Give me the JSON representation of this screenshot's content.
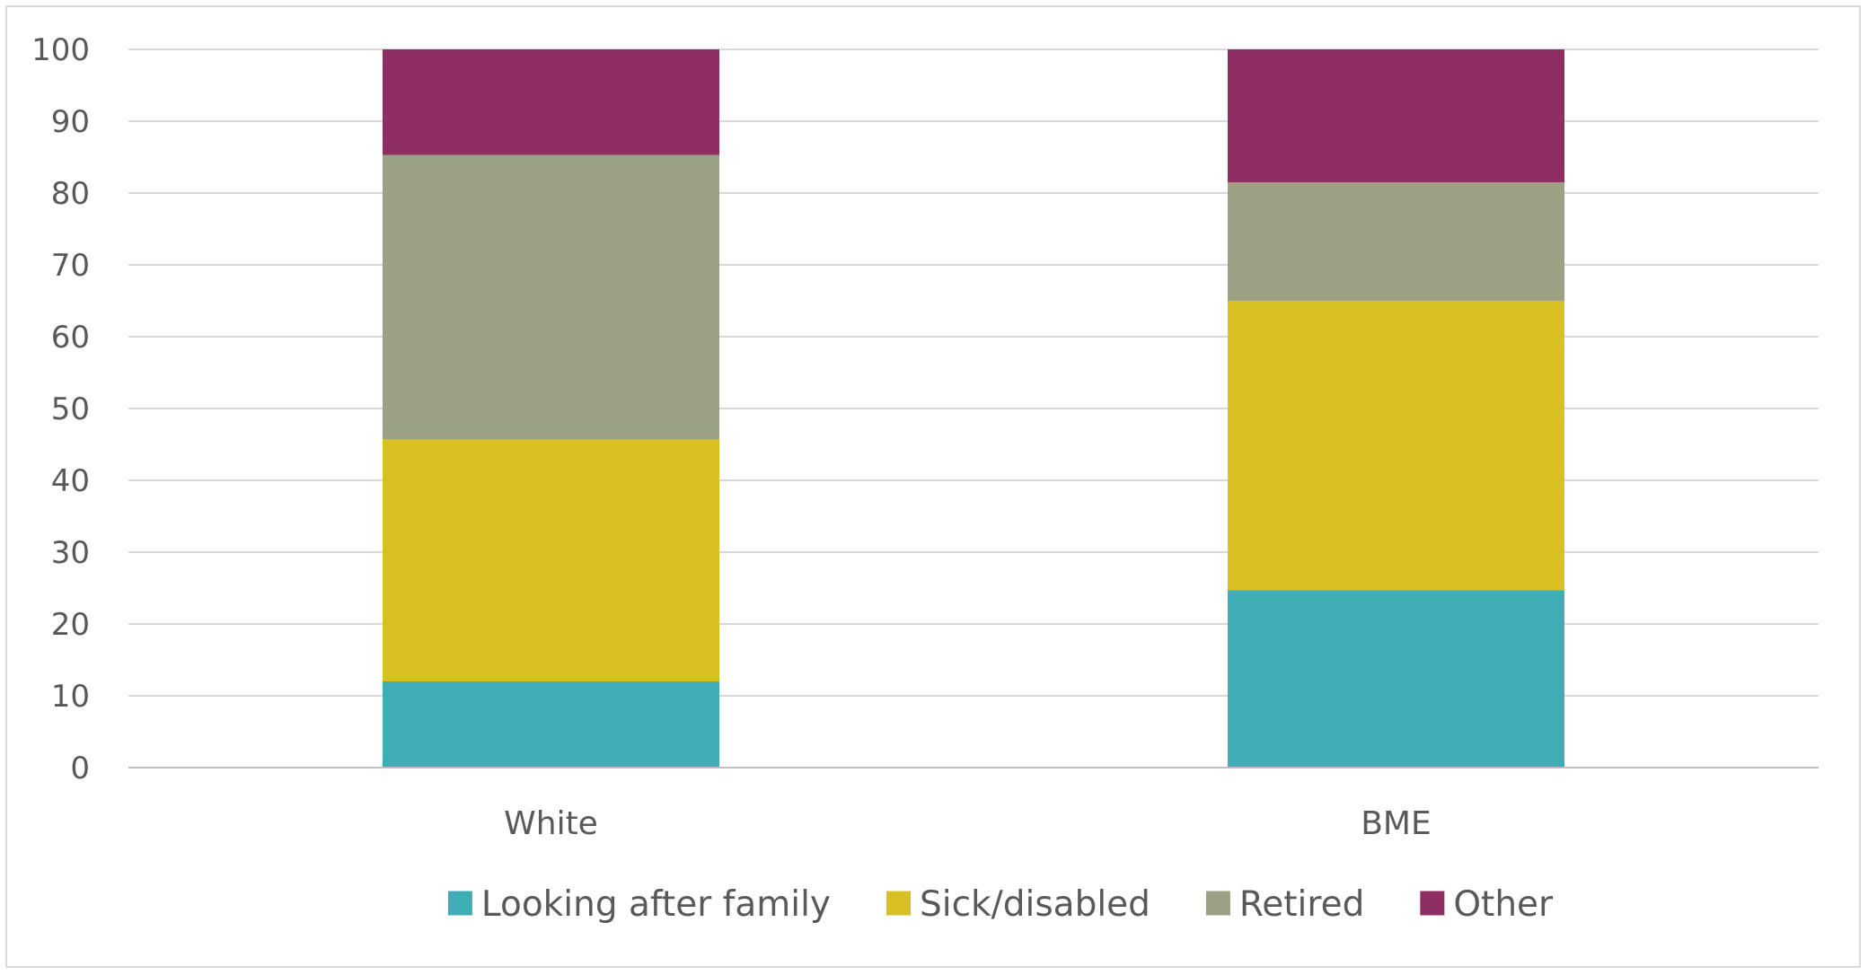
{
  "chart_data": {
    "type": "bar",
    "stacked": true,
    "categories": [
      "White",
      "BME"
    ],
    "series": [
      {
        "name": "Looking after family",
        "color": "#3FADB5",
        "values": [
          12,
          24.7
        ]
      },
      {
        "name": "Sick/disabled",
        "color": "#D8C022",
        "values": [
          33.7,
          40.3
        ]
      },
      {
        "name": "Retired",
        "color": "#9BA185",
        "values": [
          39.6,
          16.5
        ]
      },
      {
        "name": "Other",
        "color": "#8E2E63",
        "values": [
          14.7,
          18.5
        ]
      }
    ],
    "ylim": [
      0,
      100
    ],
    "yticks": [
      0,
      10,
      20,
      30,
      40,
      50,
      60,
      70,
      80,
      90,
      100
    ],
    "title": "",
    "xlabel": "",
    "ylabel": "",
    "grid": true,
    "legend_position": "bottom",
    "gridline_color": "#d9d9d9",
    "axis_color": "#bfbfbf"
  }
}
